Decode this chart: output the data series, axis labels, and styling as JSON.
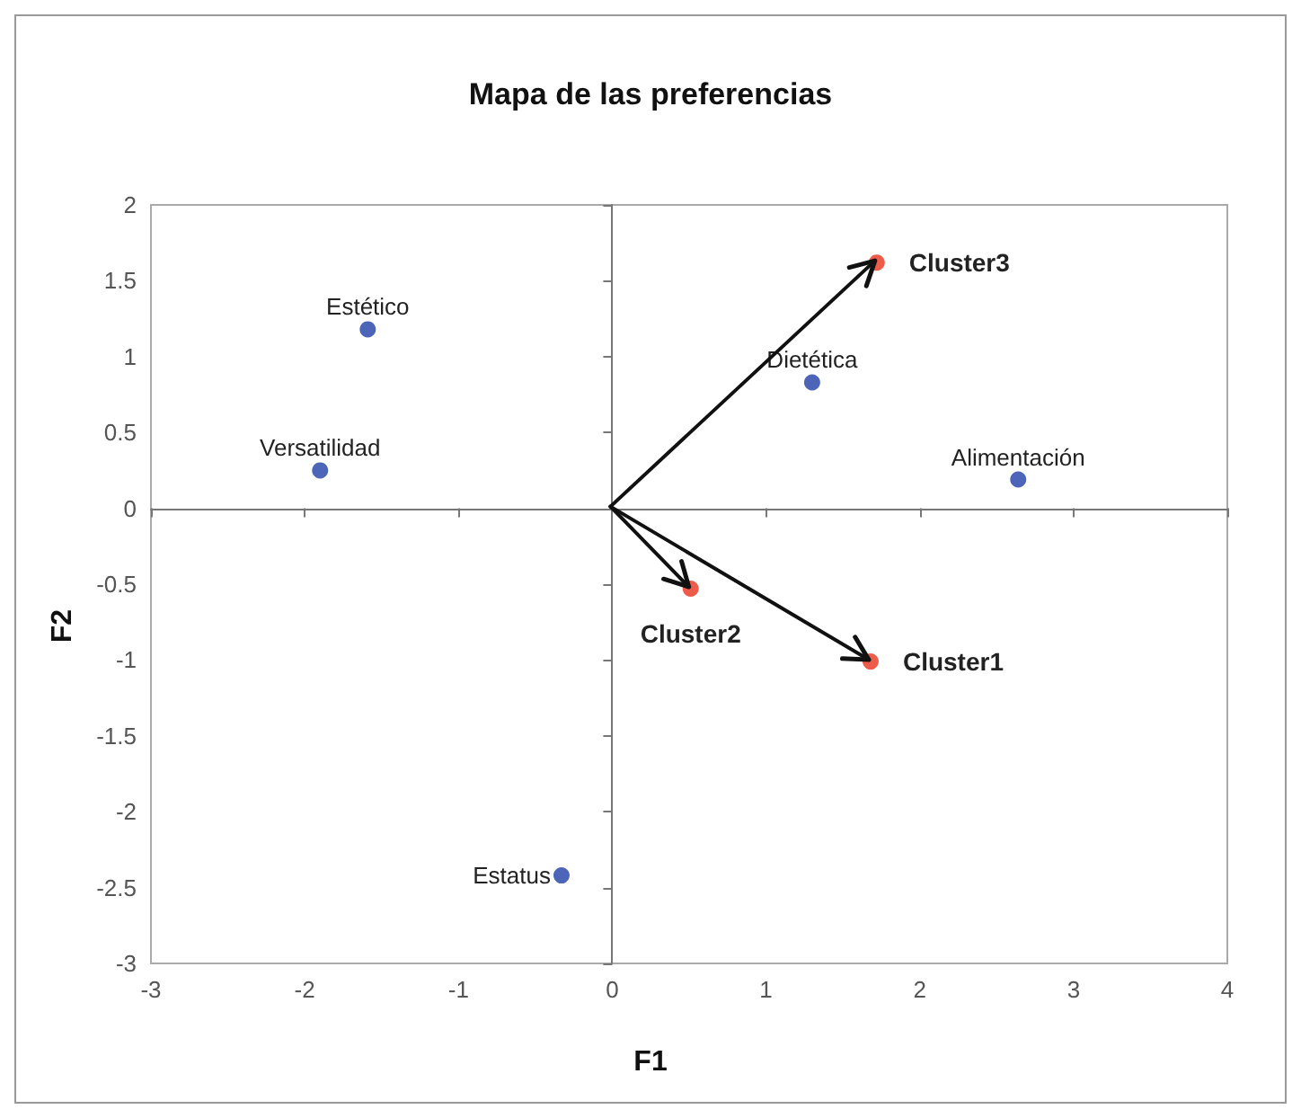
{
  "chart_data": {
    "type": "scatter",
    "title": "Mapa de las preferencias",
    "xlabel": "F1",
    "ylabel": "F2",
    "xlim": [
      -3,
      4
    ],
    "xticks": [
      -3,
      -2,
      -1,
      0,
      1,
      2,
      3,
      4
    ],
    "ylim": [
      -3,
      2
    ],
    "yticks": [
      -3,
      -2.5,
      -2,
      -1.5,
      -1,
      -0.5,
      0,
      0.5,
      1,
      1.5,
      2
    ],
    "marker": "circle",
    "series": [
      {
        "color": "#1f3fa8",
        "x": [
          -1.59,
          -1.9,
          1.3,
          2.64,
          -0.33
        ],
        "values": [
          1.18,
          0.25,
          0.83,
          0.19,
          -2.42
        ]
      },
      {
        "color": "#e8321e",
        "x": [
          1.68,
          0.51,
          1.72
        ],
        "values": [
          -1.01,
          -0.53,
          1.62
        ]
      }
    ],
    "annotations": [
      {
        "text": "Estético",
        "x": -1.59,
        "y": 1.18
      },
      {
        "text": "Versatilidad",
        "x": -1.9,
        "y": 0.25
      },
      {
        "text": "Dietética",
        "x": 1.3,
        "y": 0.83
      },
      {
        "text": "Alimentación",
        "x": 2.64,
        "y": 0.19
      },
      {
        "text": "Estatus",
        "x": -0.33,
        "y": -2.42
      },
      {
        "text": "Cluster1",
        "x": 1.68,
        "y": -1.01
      },
      {
        "text": "Cluster2",
        "x": 0.51,
        "y": -0.53
      },
      {
        "text": "Cluster3",
        "x": 1.72,
        "y": 1.62
      }
    ]
  }
}
